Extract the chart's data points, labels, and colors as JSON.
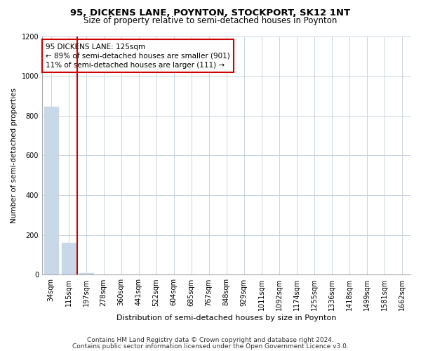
{
  "title": "95, DICKENS LANE, POYNTON, STOCKPORT, SK12 1NT",
  "subtitle": "Size of property relative to semi-detached houses in Poynton",
  "xlabel": "Distribution of semi-detached houses by size in Poynton",
  "ylabel": "Number of semi-detached properties",
  "footnote1": "Contains HM Land Registry data © Crown copyright and database right 2024.",
  "footnote2": "Contains public sector information licensed under the Open Government Licence v3.0.",
  "annotation_line1": "95 DICKENS LANE: 125sqm",
  "annotation_line2": "← 89% of semi-detached houses are smaller (901)",
  "annotation_line3": "11% of semi-detached houses are larger (111) →",
  "bar_color": "#c8d8e8",
  "vline_color": "#cc0000",
  "annotation_box_edgecolor": "#cc0000",
  "annotation_box_facecolor": "#ffffff",
  "grid_color": "#c8d4e0",
  "background_color": "#ffffff",
  "categories": [
    "34sqm",
    "115sqm",
    "197sqm",
    "278sqm",
    "360sqm",
    "441sqm",
    "522sqm",
    "604sqm",
    "685sqm",
    "767sqm",
    "848sqm",
    "929sqm",
    "1011sqm",
    "1092sqm",
    "1174sqm",
    "1255sqm",
    "1336sqm",
    "1418sqm",
    "1499sqm",
    "1581sqm",
    "1662sqm"
  ],
  "values": [
    845,
    160,
    7,
    0,
    0,
    0,
    0,
    0,
    0,
    0,
    0,
    0,
    0,
    0,
    0,
    0,
    0,
    0,
    0,
    0,
    0
  ],
  "ylim": [
    0,
    1200
  ],
  "yticks": [
    0,
    200,
    400,
    600,
    800,
    1000,
    1200
  ],
  "vline_x": 1.5,
  "title_fontsize": 9.5,
  "subtitle_fontsize": 8.5,
  "xlabel_fontsize": 8,
  "ylabel_fontsize": 7.5,
  "tick_fontsize": 7,
  "annotation_fontsize": 7.5,
  "footnote_fontsize": 6.5
}
